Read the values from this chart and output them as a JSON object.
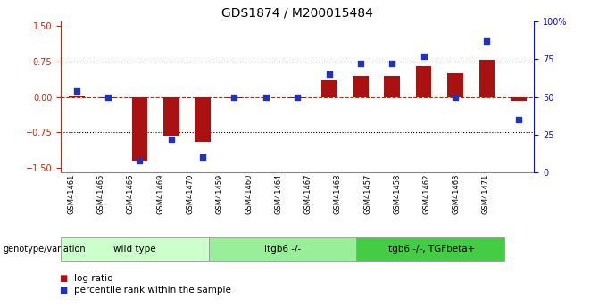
{
  "title": "GDS1874 / M200015484",
  "samples": [
    "GSM41461",
    "GSM41465",
    "GSM41466",
    "GSM41469",
    "GSM41470",
    "GSM41459",
    "GSM41460",
    "GSM41464",
    "GSM41467",
    "GSM41468",
    "GSM41457",
    "GSM41458",
    "GSM41462",
    "GSM41463",
    "GSM41471"
  ],
  "log_ratio": [
    0.02,
    -0.02,
    -1.35,
    -0.82,
    -0.95,
    -0.02,
    0.0,
    -0.02,
    0.35,
    0.45,
    0.45,
    0.65,
    0.5,
    0.78,
    -0.08
  ],
  "percentile": [
    54,
    50,
    8,
    22,
    10,
    50,
    50,
    50,
    65,
    72,
    72,
    77,
    50,
    87,
    35
  ],
  "groups": [
    {
      "label": "wild type",
      "start": 0,
      "end": 5,
      "color": "#ccffcc"
    },
    {
      "label": "Itgb6 -/-",
      "start": 5,
      "end": 10,
      "color": "#99ee99"
    },
    {
      "label": "Itgb6 -/-, TGFbeta+",
      "start": 10,
      "end": 15,
      "color": "#44cc44"
    }
  ],
  "left_ylim": [
    -1.6,
    1.6
  ],
  "right_ylim": [
    0,
    100
  ],
  "left_yticks": [
    -1.5,
    -0.75,
    0.0,
    0.75,
    1.5
  ],
  "right_yticks": [
    0,
    25,
    50,
    75,
    100
  ],
  "right_yticklabels": [
    "0",
    "25",
    "50",
    "75",
    "100%"
  ],
  "hlines_dotted": [
    -0.75,
    0.75
  ],
  "hline_dashed": 0.0,
  "bar_color": "#aa1111",
  "dot_color": "#2233bb",
  "bar_width": 0.5,
  "dot_size": 18,
  "legend_items": [
    {
      "label": "log ratio",
      "color": "#aa1111"
    },
    {
      "label": "percentile rank within the sample",
      "color": "#2233bb"
    }
  ],
  "genotype_label": "genotype/variation",
  "left_tick_color": "#cc2200",
  "right_tick_color": "#1111cc",
  "title_fontsize": 10,
  "tick_labelsize": 7,
  "sample_labelsize": 6
}
